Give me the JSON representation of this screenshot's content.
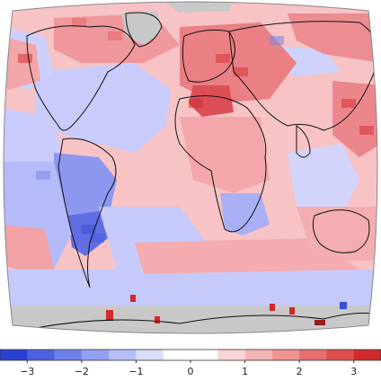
{
  "map": {
    "colors": {
      "missing": "#c8c8c8",
      "neutral": "#f6d4d6",
      "cold_deep": "#3a4fd8",
      "cold_mid": "#7c86ec",
      "cold_light": "#c2c6fb",
      "warm_light": "#f8b7b9",
      "warm_mid": "#ef8f93",
      "warm_deep": "#d9303a",
      "coast": "#111111"
    },
    "legend": {
      "ticks": [
        "−3",
        "−2",
        "−1",
        "0",
        "1",
        "2",
        "3"
      ],
      "range": [
        -3.5,
        3.5
      ],
      "colors": [
        "#2c3fd3",
        "#4e62e0",
        "#6f80ea",
        "#93a0f2",
        "#b7bff8",
        "#dadffb",
        "#ffffff",
        "#ffffff",
        "#fbd6d6",
        "#f6b5b5",
        "#ef9393",
        "#e67070",
        "#dc4d4d",
        "#d22a2a"
      ]
    }
  }
}
